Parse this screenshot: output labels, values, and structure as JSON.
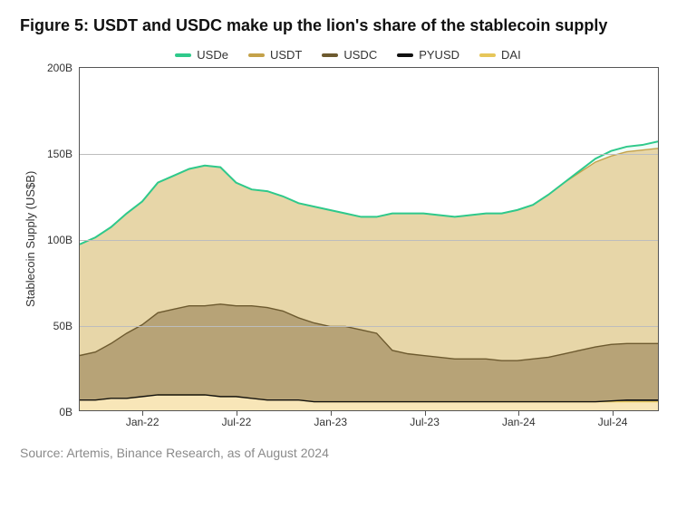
{
  "title": "Figure 5: USDT and USDC make up the lion's share of the stablecoin supply",
  "source": "Source: Artemis, Binance Research, as of August 2024",
  "chart": {
    "type": "area",
    "ylabel": "Stablecoin Supply (US$B)",
    "ylim": [
      0,
      200
    ],
    "yticks": [
      0,
      50,
      100,
      150,
      200
    ],
    "ytick_labels": [
      "0B",
      "50B",
      "100B",
      "150B",
      "200B"
    ],
    "xlim": [
      0,
      37
    ],
    "xticks_major": [
      4,
      10,
      16,
      22,
      28,
      34
    ],
    "xtick_labels": [
      "Jan-22",
      "Jul-22",
      "Jan-23",
      "Jul-23",
      "Jan-24",
      "Jul-24"
    ],
    "grid_color": "#bdbdbd",
    "border_color": "#555555",
    "background_color": "#ffffff",
    "title_fontsize": 18,
    "label_fontsize": 13,
    "tick_fontsize": 12,
    "line_width_top": 2.0,
    "line_width_inner": 1.4,
    "legend_position": "top-center",
    "series_order_bottom_to_top": [
      "DAI",
      "PYUSD",
      "USDC",
      "USDT",
      "USDe"
    ],
    "series": {
      "DAI": {
        "label": "DAI",
        "fill_color": "#f8e6b8",
        "line_color": "#e6c65a",
        "values": [
          6,
          6,
          7,
          7,
          8,
          9,
          9,
          9,
          9,
          8,
          8,
          7,
          6,
          6,
          6,
          5,
          5,
          5,
          5,
          5,
          5,
          5,
          5,
          5,
          5,
          5,
          5,
          5,
          5,
          5,
          5,
          5,
          5,
          5,
          5,
          5,
          5,
          5
        ]
      },
      "PYUSD": {
        "label": "PYUSD",
        "fill_color": "#444444",
        "line_color": "#111111",
        "values": [
          0,
          0,
          0,
          0,
          0,
          0,
          0,
          0,
          0,
          0,
          0,
          0,
          0,
          0,
          0,
          0,
          0,
          0,
          0,
          0,
          0,
          0,
          0,
          0,
          0,
          0,
          0,
          0,
          0,
          0,
          0,
          0,
          0,
          0,
          0.5,
          1,
          1,
          1
        ]
      },
      "USDC": {
        "label": "USDC",
        "fill_color": "#b7a377",
        "line_color": "#6d5a2f",
        "values": [
          26,
          28,
          32,
          38,
          42,
          48,
          50,
          52,
          52,
          54,
          53,
          54,
          54,
          52,
          48,
          46,
          44,
          44,
          42,
          40,
          30,
          28,
          27,
          26,
          25,
          25,
          25,
          24,
          24,
          25,
          26,
          28,
          30,
          32,
          33,
          33,
          33,
          33
        ]
      },
      "USDT": {
        "label": "USDT",
        "fill_color": "#e7d6a8",
        "line_color": "#c4a24a",
        "values": [
          65,
          67,
          68,
          70,
          72,
          76,
          78,
          80,
          82,
          80,
          72,
          68,
          68,
          67,
          67,
          68,
          68,
          66,
          66,
          68,
          80,
          82,
          83,
          83,
          83,
          84,
          85,
          86,
          88,
          90,
          95,
          100,
          104,
          108,
          110,
          112,
          113,
          114
        ]
      },
      "USDe": {
        "label": "USDe",
        "fill_color": "rgba(63,207,144,0.08)",
        "line_color": "#2fc98b",
        "values": [
          0,
          0,
          0,
          0,
          0,
          0,
          0,
          0,
          0,
          0,
          0,
          0,
          0,
          0,
          0,
          0,
          0,
          0,
          0,
          0,
          0,
          0,
          0,
          0,
          0,
          0,
          0,
          0,
          0,
          0,
          0,
          0,
          1,
          2,
          3,
          3,
          3,
          4
        ]
      }
    }
  }
}
